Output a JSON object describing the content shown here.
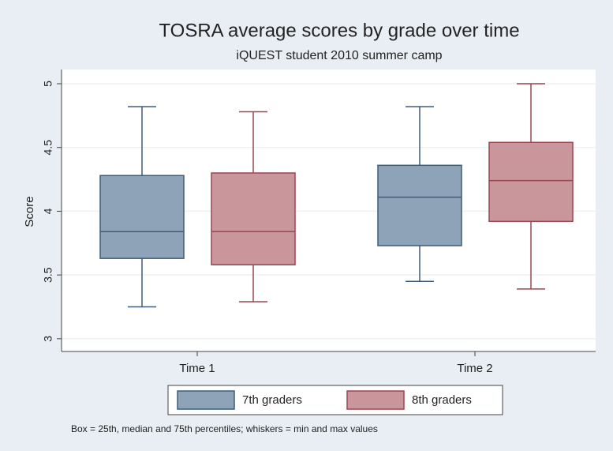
{
  "chart_data": {
    "type": "box",
    "title": "TOSRA average scores by grade over time",
    "subtitle": "iQUEST student 2010 summer camp",
    "y_label": "Score",
    "note": "Box = 25th, median and 75th percentiles; whiskers = min and max values",
    "categories": [
      "Time 1",
      "Time 2"
    ],
    "ylim": [
      2.9,
      5.1
    ],
    "yticks": [
      3,
      3.5,
      4,
      4.5,
      5
    ],
    "grid": true,
    "series": [
      {
        "name": "7th graders",
        "color": "#8fa3b8",
        "edge": "#3d5c7c",
        "min": [
          3.25,
          3.45
        ],
        "q1": [
          3.63,
          3.73
        ],
        "median": [
          3.84,
          4.11
        ],
        "q3": [
          4.28,
          4.36
        ],
        "max": [
          4.82,
          4.82
        ]
      },
      {
        "name": "8th graders",
        "color": "#c8969b",
        "edge": "#9a4750",
        "min": [
          3.29,
          3.39
        ],
        "q1": [
          3.58,
          3.92
        ],
        "median": [
          3.84,
          4.24
        ],
        "q3": [
          4.3,
          4.54
        ],
        "max": [
          4.78,
          5.0
        ]
      }
    ]
  }
}
